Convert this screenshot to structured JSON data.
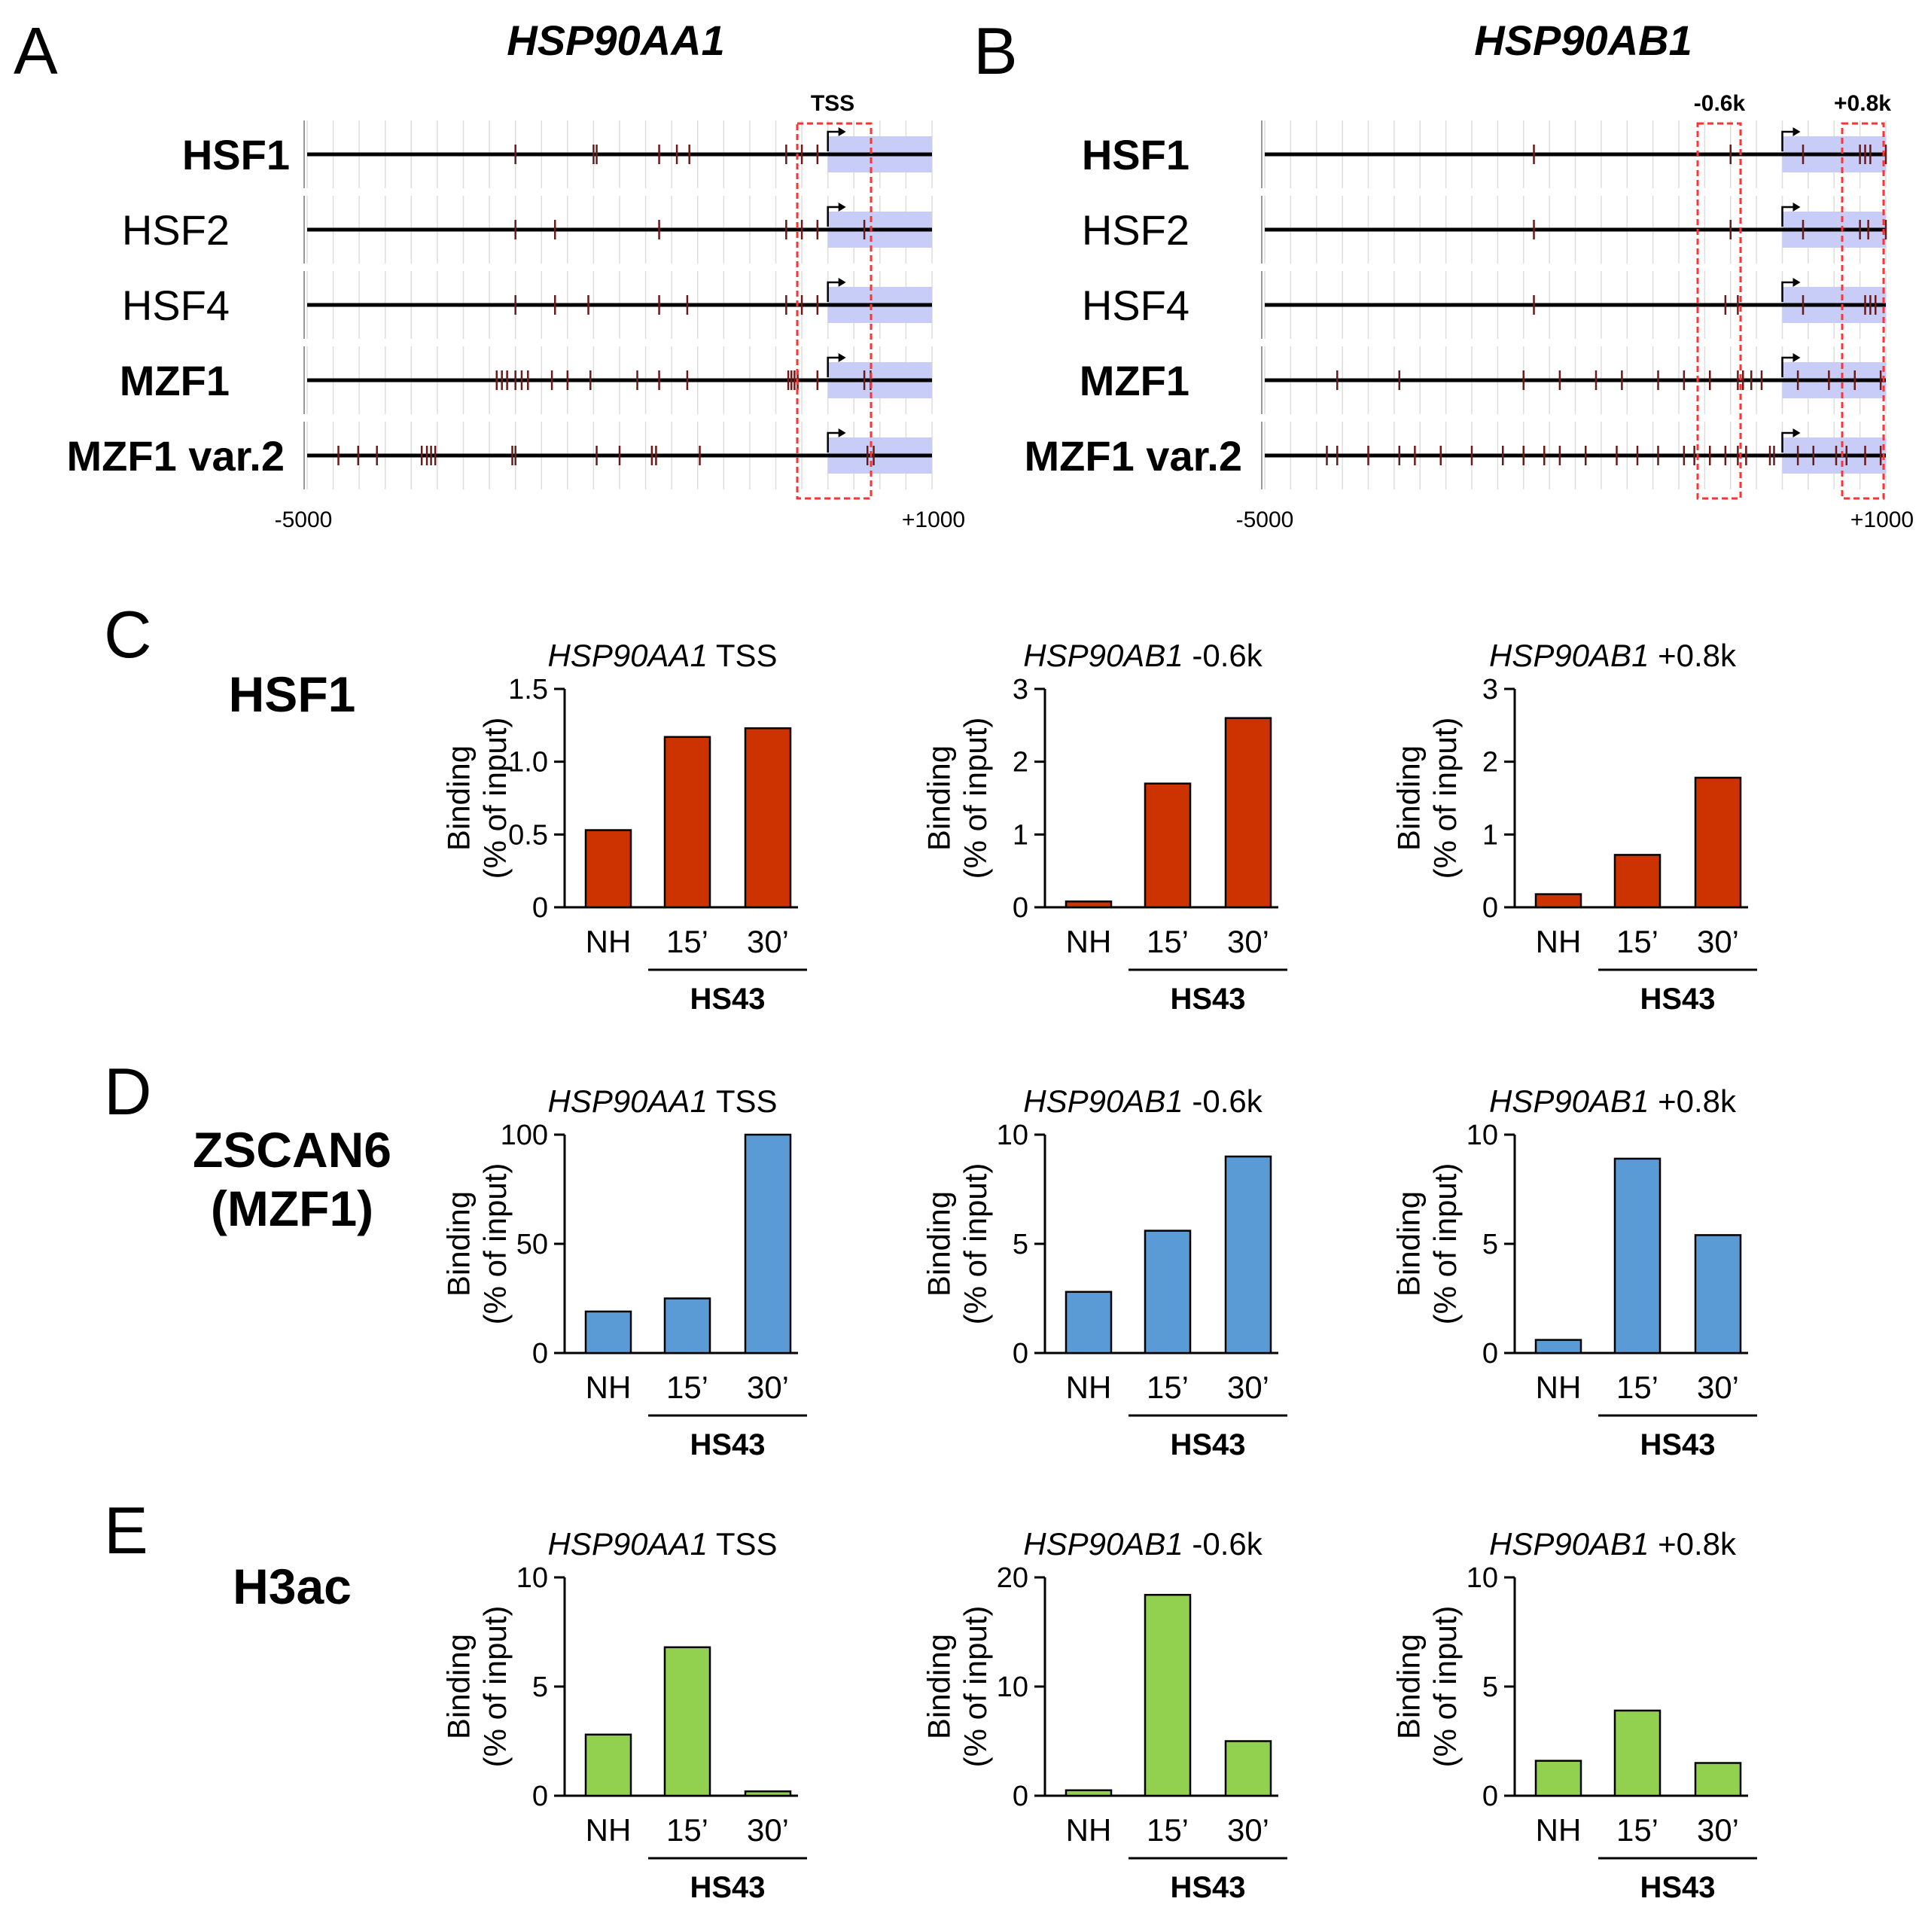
{
  "colors": {
    "hsf1": "#c00000",
    "mzf1": "#0f2466",
    "zscan6": "#4a74c4",
    "h3ac": "#5a8a32",
    "bar_red": "#cc3300",
    "bar_blue": "#5b9bd5",
    "bar_green": "#92d050",
    "region": "#c7cdf7",
    "box": "#ff3333"
  },
  "panels": {
    "A": {
      "letter": "A",
      "gene": "HSP90AA1",
      "box_labels": [
        "TSS"
      ],
      "axis_start": "-5000",
      "axis_end": "+1000"
    },
    "B": {
      "letter": "B",
      "gene": "HSP90AB1",
      "box_labels": [
        "-0.6k",
        "+0.8k"
      ],
      "axis_start": "-5000",
      "axis_end": "+1000"
    },
    "C": {
      "letter": "C",
      "factor": "HSF1"
    },
    "D": {
      "letter": "D",
      "factor_line1": "ZSCAN6",
      "factor_line2": "(MZF1)"
    },
    "E": {
      "letter": "E",
      "factor": "H3ac"
    }
  },
  "tracks": {
    "labels": [
      "HSF1",
      "HSF2",
      "HSF4",
      "MZF1",
      "MZF1 var.2"
    ],
    "A": {
      "HSF1": [
        -3000,
        -2250,
        -2220,
        -1620,
        -1450,
        -1330,
        -400,
        -250,
        -100
      ],
      "HSF2": [
        -3000,
        -2620,
        -1620,
        -400,
        -250,
        -100,
        350
      ],
      "HSF4": [
        -3000,
        -2620,
        -2300,
        -1620,
        -1350,
        -400,
        -250,
        -100
      ],
      "MZF1": [
        -3180,
        -3130,
        -3080,
        -3000,
        -2940,
        -2880,
        -2650,
        -2500,
        -2280,
        -1830,
        -1620,
        -1350,
        -380,
        -350,
        -320,
        -290,
        -100,
        350,
        410
      ],
      "MZF1 var.2": [
        -4700,
        -4510,
        -4330,
        -3900,
        -3850,
        -3810,
        -3770,
        -3030,
        -3000,
        -2220,
        -2000,
        -1690,
        -1650,
        -1230,
        380,
        440
      ]
    },
    "B": {
      "HSF1": [
        -2400,
        -500,
        200,
        750,
        800,
        850,
        1000
      ],
      "HSF2": [
        -2400,
        -500,
        200,
        750,
        830,
        1000
      ],
      "HSF4": [
        -2400,
        -550,
        -430,
        200,
        800,
        850,
        900
      ],
      "MZF1": [
        -4300,
        -3700,
        -2500,
        -2150,
        -1800,
        -1550,
        -1200,
        -950,
        -700,
        -430,
        -380,
        -300,
        -200,
        150,
        450,
        700,
        950
      ],
      "MZF1 var.2": [
        -4400,
        -4300,
        -4000,
        -3700,
        -3550,
        -3300,
        -3000,
        -2700,
        -2500,
        -2300,
        -2150,
        -1900,
        -1600,
        -1400,
        -1200,
        -950,
        -850,
        -700,
        -550,
        -430,
        -350,
        -120,
        -80,
        150,
        300,
        520,
        620,
        800,
        950
      ]
    }
  },
  "charts": {
    "categories": [
      "NH",
      "15’",
      "30’"
    ],
    "group_label": "HS43",
    "ylabel_line1": "Binding",
    "ylabel_line2": "(% of input)"
  },
  "chart_data": [
    {
      "id": "C1",
      "type": "bar",
      "title_gene": "HSP90AA1",
      "title_suffix": " TSS",
      "categories": [
        "NH",
        "15’",
        "30’"
      ],
      "values": [
        0.53,
        1.17,
        1.23
      ],
      "ylim": [
        0,
        1.5
      ],
      "yticks": [
        0,
        0.5,
        1.0,
        1.5
      ],
      "yticklabels": [
        "0",
        "0.5",
        "1.0",
        "1.5"
      ],
      "xlabel": "HS43",
      "ylabel": "Binding (% of input)",
      "color": "#cc3300"
    },
    {
      "id": "C2",
      "type": "bar",
      "title_gene": "HSP90AB1",
      "title_suffix": " -0.6k",
      "categories": [
        "NH",
        "15’",
        "30’"
      ],
      "values": [
        0.08,
        1.7,
        2.6
      ],
      "ylim": [
        0,
        3
      ],
      "yticks": [
        0,
        1,
        2,
        3
      ],
      "yticklabels": [
        "0",
        "1",
        "2",
        "3"
      ],
      "xlabel": "HS43",
      "ylabel": "Binding (% of input)",
      "color": "#cc3300"
    },
    {
      "id": "C3",
      "type": "bar",
      "title_gene": "HSP90AB1",
      "title_suffix": " +0.8k",
      "categories": [
        "NH",
        "15’",
        "30’"
      ],
      "values": [
        0.18,
        0.72,
        1.78
      ],
      "ylim": [
        0,
        3
      ],
      "yticks": [
        0,
        1,
        2,
        3
      ],
      "yticklabels": [
        "0",
        "1",
        "2",
        "3"
      ],
      "xlabel": "HS43",
      "ylabel": "Binding (% of input)",
      "color": "#cc3300"
    },
    {
      "id": "D1",
      "type": "bar",
      "title_gene": "HSP90AA1",
      "title_suffix": " TSS",
      "categories": [
        "NH",
        "15’",
        "30’"
      ],
      "values": [
        19,
        25,
        100
      ],
      "ylim": [
        0,
        100
      ],
      "yticks": [
        0,
        50,
        100
      ],
      "yticklabels": [
        "0",
        "50",
        "100"
      ],
      "xlabel": "HS43",
      "ylabel": "Binding (% of input)",
      "color": "#5b9bd5"
    },
    {
      "id": "D2",
      "type": "bar",
      "title_gene": "HSP90AB1",
      "title_suffix": " -0.6k",
      "categories": [
        "NH",
        "15’",
        "30’"
      ],
      "values": [
        2.8,
        5.6,
        9.0
      ],
      "ylim": [
        0,
        10
      ],
      "yticks": [
        0,
        5,
        10
      ],
      "yticklabels": [
        "0",
        "5",
        "10"
      ],
      "xlabel": "HS43",
      "ylabel": "Binding (% of input)",
      "color": "#5b9bd5"
    },
    {
      "id": "D3",
      "type": "bar",
      "title_gene": "HSP90AB1",
      "title_suffix": " +0.8k",
      "categories": [
        "NH",
        "15’",
        "30’"
      ],
      "values": [
        0.6,
        8.9,
        5.4
      ],
      "ylim": [
        0,
        10
      ],
      "yticks": [
        0,
        5,
        10
      ],
      "yticklabels": [
        "0",
        "5",
        "10"
      ],
      "xlabel": "HS43",
      "ylabel": "Binding (% of input)",
      "color": "#5b9bd5"
    },
    {
      "id": "E1",
      "type": "bar",
      "title_gene": "HSP90AA1",
      "title_suffix": " TSS",
      "categories": [
        "NH",
        "15’",
        "30’"
      ],
      "values": [
        2.8,
        6.8,
        0.2
      ],
      "ylim": [
        0,
        10
      ],
      "yticks": [
        0,
        5,
        10
      ],
      "yticklabels": [
        "0",
        "5",
        "10"
      ],
      "xlabel": "HS43",
      "ylabel": "Binding (% of input)",
      "color": "#92d050"
    },
    {
      "id": "E2",
      "type": "bar",
      "title_gene": "HSP90AB1",
      "title_suffix": " -0.6k",
      "categories": [
        "NH",
        "15’",
        "30’"
      ],
      "values": [
        0.5,
        18.4,
        5.0
      ],
      "ylim": [
        0,
        20
      ],
      "yticks": [
        0,
        10,
        20
      ],
      "yticklabels": [
        "0",
        "10",
        "20"
      ],
      "xlabel": "HS43",
      "ylabel": "Binding (% of input)",
      "color": "#92d050"
    },
    {
      "id": "E3",
      "type": "bar",
      "title_gene": "HSP90AB1",
      "title_suffix": " +0.8k",
      "categories": [
        "NH",
        "15’",
        "30’"
      ],
      "values": [
        1.6,
        3.9,
        1.5
      ],
      "ylim": [
        0,
        10
      ],
      "yticks": [
        0,
        5,
        10
      ],
      "yticklabels": [
        "0",
        "5",
        "10"
      ],
      "xlabel": "HS43",
      "ylabel": "Binding (% of input)",
      "color": "#92d050"
    }
  ]
}
